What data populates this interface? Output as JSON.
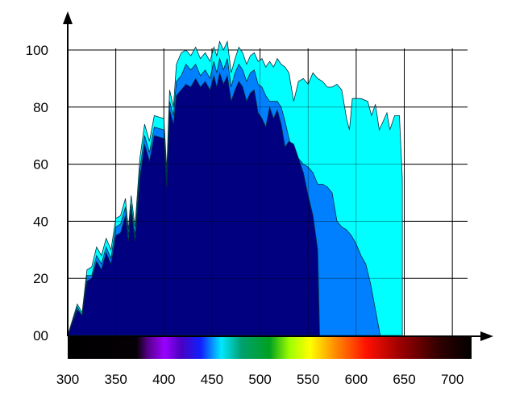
{
  "chart_data": {
    "type": "area",
    "xlabel": "",
    "ylabel": "",
    "xlim": [
      300,
      720
    ],
    "ylim": [
      0,
      100
    ],
    "x_ticks": [
      300,
      350,
      400,
      450,
      500,
      550,
      600,
      650,
      700
    ],
    "x_tick_labels": [
      "300",
      "350",
      "400",
      "450",
      "500",
      "550",
      "600",
      "650",
      "700"
    ],
    "y_ticks": [
      0,
      20,
      40,
      60,
      80,
      100
    ],
    "y_tick_labels": [
      "00",
      "20",
      "40",
      "60",
      "80",
      "100"
    ],
    "grid": true,
    "spectrum_band": true,
    "series": [
      {
        "color": "#00ffff",
        "points": [
          [
            300,
            0
          ],
          [
            310,
            11
          ],
          [
            315,
            8
          ],
          [
            320,
            23
          ],
          [
            325,
            24
          ],
          [
            330,
            31
          ],
          [
            335,
            28
          ],
          [
            340,
            34
          ],
          [
            345,
            30
          ],
          [
            350,
            41
          ],
          [
            355,
            42
          ],
          [
            360,
            48
          ],
          [
            363,
            37
          ],
          [
            366,
            49
          ],
          [
            370,
            38
          ],
          [
            375,
            62
          ],
          [
            380,
            74
          ],
          [
            385,
            68
          ],
          [
            390,
            77
          ],
          [
            400,
            76
          ],
          [
            403,
            58
          ],
          [
            406,
            86
          ],
          [
            410,
            80
          ],
          [
            413,
            95
          ],
          [
            418,
            99
          ],
          [
            423,
            100
          ],
          [
            428,
            98
          ],
          [
            433,
            101
          ],
          [
            438,
            97
          ],
          [
            443,
            99
          ],
          [
            448,
            96
          ],
          [
            452,
            101
          ],
          [
            455,
            98
          ],
          [
            458,
            103
          ],
          [
            462,
            100
          ],
          [
            466,
            103
          ],
          [
            470,
            92
          ],
          [
            474,
            97
          ],
          [
            478,
            101
          ],
          [
            482,
            99
          ],
          [
            486,
            95
          ],
          [
            490,
            98
          ],
          [
            494,
            99
          ],
          [
            498,
            96
          ],
          [
            502,
            97
          ],
          [
            506,
            94
          ],
          [
            510,
            96
          ],
          [
            514,
            94
          ],
          [
            518,
            97
          ],
          [
            522,
            95
          ],
          [
            526,
            94
          ],
          [
            530,
            92
          ],
          [
            535,
            82
          ],
          [
            540,
            89
          ],
          [
            545,
            90
          ],
          [
            550,
            88
          ],
          [
            555,
            92
          ],
          [
            560,
            90
          ],
          [
            565,
            89
          ],
          [
            570,
            87
          ],
          [
            575,
            87
          ],
          [
            580,
            88
          ],
          [
            585,
            86
          ],
          [
            590,
            76
          ],
          [
            593,
            72
          ],
          [
            596,
            83
          ],
          [
            605,
            83
          ],
          [
            612,
            82
          ],
          [
            616,
            77
          ],
          [
            620,
            81
          ],
          [
            624,
            72
          ],
          [
            628,
            75
          ],
          [
            632,
            78
          ],
          [
            635,
            72
          ],
          [
            640,
            77
          ],
          [
            645,
            77
          ],
          [
            648,
            55
          ],
          [
            648,
            0
          ]
        ]
      },
      {
        "color": "#0080ff",
        "points": [
          [
            300,
            0
          ],
          [
            310,
            10
          ],
          [
            315,
            7
          ],
          [
            320,
            21
          ],
          [
            325,
            21
          ],
          [
            330,
            28
          ],
          [
            335,
            25
          ],
          [
            340,
            31
          ],
          [
            345,
            27
          ],
          [
            350,
            38
          ],
          [
            355,
            39
          ],
          [
            360,
            45
          ],
          [
            363,
            35
          ],
          [
            366,
            46
          ],
          [
            370,
            35
          ],
          [
            375,
            58
          ],
          [
            380,
            70
          ],
          [
            385,
            64
          ],
          [
            390,
            73
          ],
          [
            400,
            72
          ],
          [
            403,
            55
          ],
          [
            406,
            82
          ],
          [
            410,
            77
          ],
          [
            413,
            89
          ],
          [
            418,
            91
          ],
          [
            423,
            95
          ],
          [
            428,
            93
          ],
          [
            433,
            95
          ],
          [
            438,
            91
          ],
          [
            443,
            93
          ],
          [
            448,
            90
          ],
          [
            452,
            96
          ],
          [
            455,
            92
          ],
          [
            458,
            97
          ],
          [
            462,
            93
          ],
          [
            466,
            97
          ],
          [
            470,
            87
          ],
          [
            474,
            92
          ],
          [
            478,
            95
          ],
          [
            482,
            93
          ],
          [
            486,
            89
          ],
          [
            490,
            92
          ],
          [
            494,
            93
          ],
          [
            498,
            88
          ],
          [
            502,
            87
          ],
          [
            506,
            84
          ],
          [
            510,
            82
          ],
          [
            514,
            82
          ],
          [
            518,
            82
          ],
          [
            522,
            80
          ],
          [
            526,
            75
          ],
          [
            530,
            69
          ],
          [
            535,
            64
          ],
          [
            540,
            62
          ],
          [
            545,
            60
          ],
          [
            550,
            59
          ],
          [
            555,
            57
          ],
          [
            560,
            53
          ],
          [
            565,
            53
          ],
          [
            570,
            52
          ],
          [
            575,
            50
          ],
          [
            580,
            40
          ],
          [
            585,
            38
          ],
          [
            590,
            37
          ],
          [
            595,
            35
          ],
          [
            600,
            32
          ],
          [
            605,
            28
          ],
          [
            610,
            25
          ],
          [
            615,
            18
          ],
          [
            620,
            9
          ],
          [
            625,
            0
          ]
        ]
      },
      {
        "color": "#000080",
        "points": [
          [
            300,
            0
          ],
          [
            310,
            9
          ],
          [
            315,
            7
          ],
          [
            320,
            19
          ],
          [
            325,
            20
          ],
          [
            330,
            26
          ],
          [
            335,
            23
          ],
          [
            340,
            29
          ],
          [
            345,
            25
          ],
          [
            350,
            35
          ],
          [
            355,
            36
          ],
          [
            360,
            42
          ],
          [
            363,
            33
          ],
          [
            366,
            44
          ],
          [
            370,
            33
          ],
          [
            375,
            55
          ],
          [
            380,
            67
          ],
          [
            385,
            61
          ],
          [
            390,
            70
          ],
          [
            400,
            69
          ],
          [
            403,
            52
          ],
          [
            406,
            79
          ],
          [
            410,
            74
          ],
          [
            413,
            84
          ],
          [
            418,
            86
          ],
          [
            423,
            88
          ],
          [
            428,
            87
          ],
          [
            433,
            90
          ],
          [
            438,
            87
          ],
          [
            443,
            89
          ],
          [
            448,
            86
          ],
          [
            452,
            91
          ],
          [
            455,
            87
          ],
          [
            458,
            92
          ],
          [
            462,
            88
          ],
          [
            466,
            91
          ],
          [
            470,
            82
          ],
          [
            474,
            86
          ],
          [
            478,
            89
          ],
          [
            482,
            87
          ],
          [
            486,
            82
          ],
          [
            490,
            85
          ],
          [
            494,
            86
          ],
          [
            498,
            78
          ],
          [
            502,
            76
          ],
          [
            506,
            73
          ],
          [
            510,
            80
          ],
          [
            514,
            76
          ],
          [
            518,
            79
          ],
          [
            522,
            74
          ],
          [
            526,
            66
          ],
          [
            530,
            68
          ],
          [
            535,
            67
          ],
          [
            540,
            62
          ],
          [
            545,
            57
          ],
          [
            550,
            49
          ],
          [
            555,
            42
          ],
          [
            560,
            30
          ],
          [
            562,
            0
          ]
        ]
      }
    ]
  }
}
